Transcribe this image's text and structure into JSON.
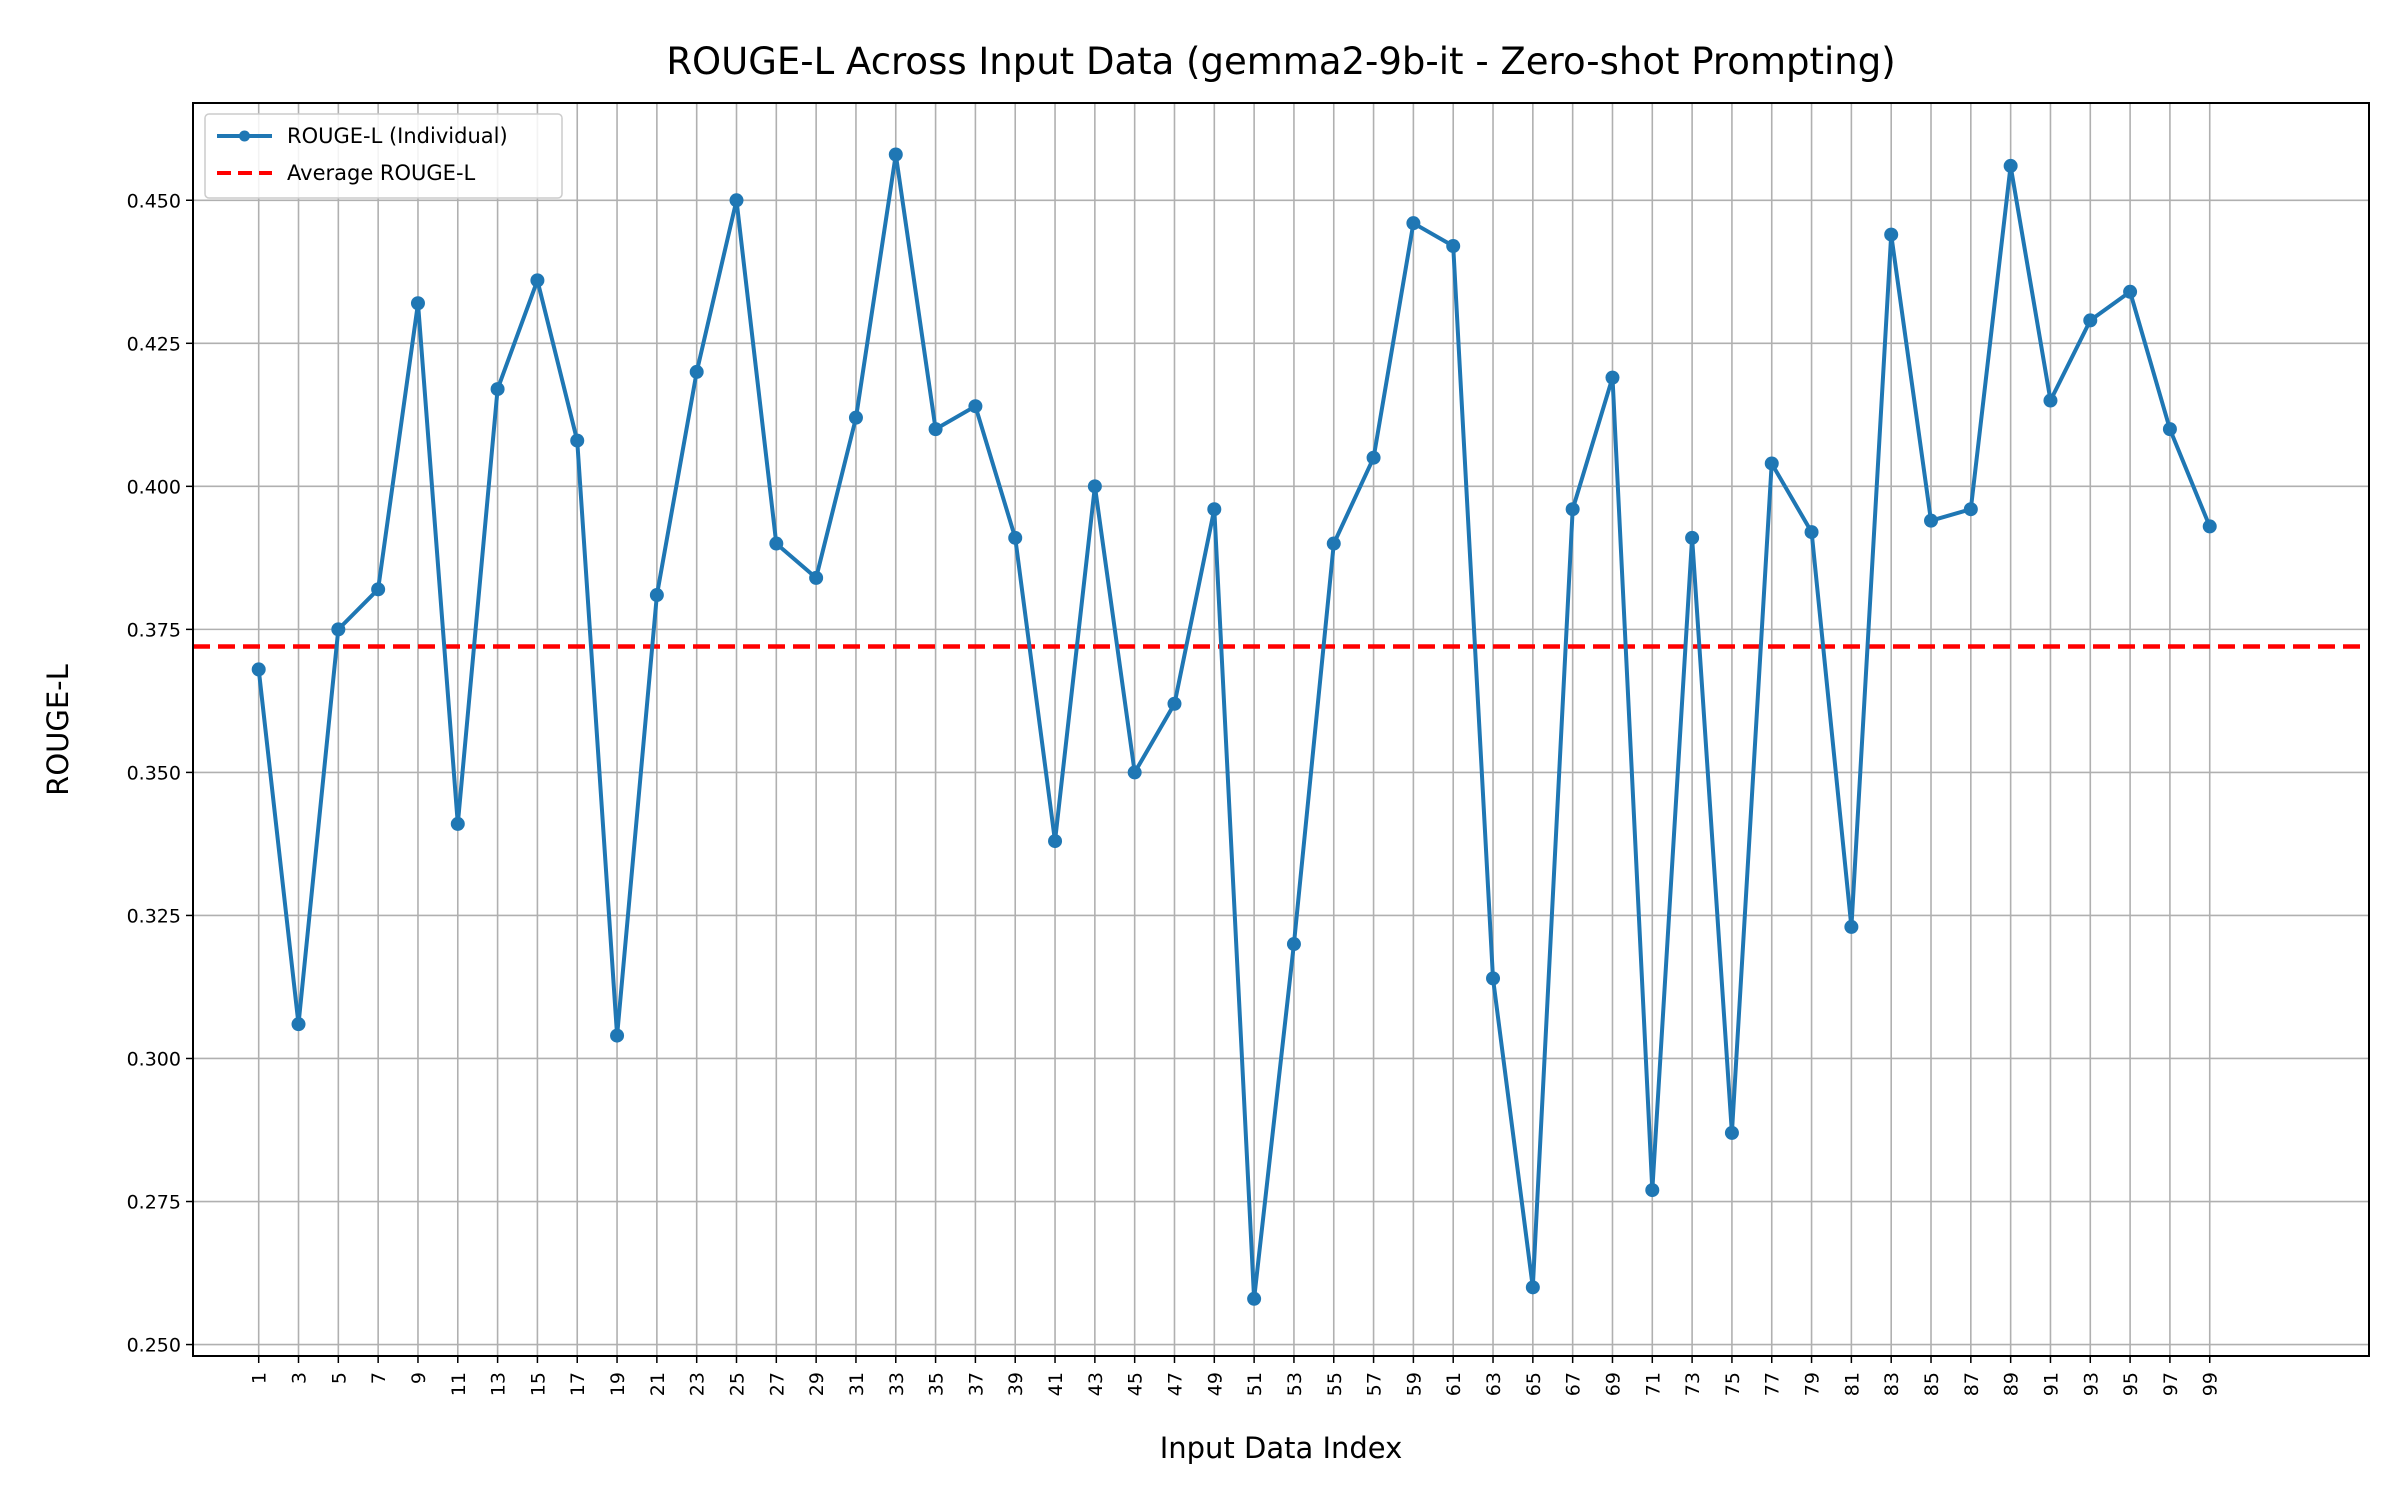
{
  "chart_data": {
    "type": "line",
    "title": "ROUGE-L Across Input Data (gemma2-9b-it - Zero-shot Prompting)",
    "xlabel": "Input Data Index",
    "ylabel": "ROUGE-L",
    "xlim": [
      -2.3,
      107
    ],
    "ylim": [
      0.248,
      0.467
    ],
    "grid": true,
    "legend_position": "top-left",
    "x_ticks": [
      1,
      3,
      5,
      7,
      9,
      11,
      13,
      15,
      17,
      19,
      21,
      23,
      25,
      27,
      29,
      31,
      33,
      35,
      37,
      39,
      41,
      43,
      45,
      47,
      49,
      51,
      53,
      55,
      57,
      59,
      61,
      63,
      65,
      67,
      69,
      71,
      73,
      75,
      77,
      79,
      81,
      83,
      85,
      87,
      89,
      91,
      93,
      95,
      97,
      99
    ],
    "y_ticks": [
      "0.250",
      "0.275",
      "0.300",
      "0.325",
      "0.350",
      "0.375",
      "0.400",
      "0.425",
      "0.450"
    ],
    "series": [
      {
        "name": "ROUGE-L (Individual)",
        "color": "#1f77b4",
        "style": "solid-with-markers",
        "x": [
          1,
          3,
          5,
          7,
          9,
          11,
          13,
          15,
          17,
          19,
          21,
          23,
          25,
          27,
          29,
          31,
          33,
          35,
          37,
          39,
          41,
          43,
          45,
          47,
          49,
          51,
          53,
          55,
          57,
          59,
          61,
          63,
          65,
          67,
          69,
          71,
          73,
          75,
          77,
          79,
          81,
          83,
          85,
          87,
          89,
          91,
          93,
          95,
          97,
          99
        ],
        "values": [
          0.368,
          0.306,
          0.375,
          0.382,
          0.432,
          0.341,
          0.417,
          0.436,
          0.408,
          0.304,
          0.381,
          0.42,
          0.45,
          0.39,
          0.384,
          0.412,
          0.458,
          0.41,
          0.414,
          0.391,
          0.338,
          0.4,
          0.35,
          0.362,
          0.396,
          0.258,
          0.32,
          0.39,
          0.405,
          0.446,
          0.442,
          0.314,
          0.26,
          0.396,
          0.419,
          0.277,
          0.391,
          0.287,
          0.404,
          0.392,
          0.323,
          0.444,
          0.394,
          0.396,
          0.456,
          0.415,
          0.429,
          0.434,
          0.41,
          0.393
        ]
      },
      {
        "name": "Average ROUGE-L",
        "color": "#ff0000",
        "style": "dashed",
        "value": 0.372
      }
    ]
  }
}
